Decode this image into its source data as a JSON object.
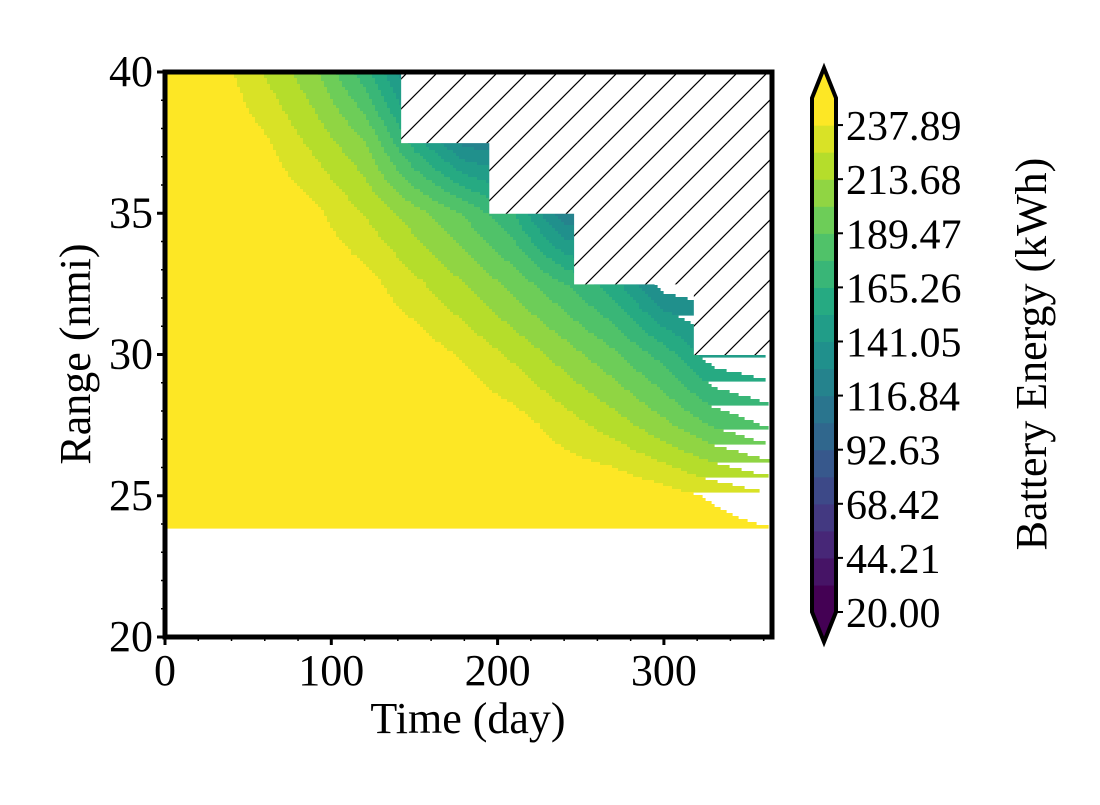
{
  "chart_data": {
    "type": "contour",
    "xlabel": "Time (day)",
    "ylabel": "Range (nmi)",
    "xlim": [
      0,
      365
    ],
    "ylim": [
      20,
      40
    ],
    "x_ticks": [
      0,
      100,
      200,
      300
    ],
    "y_ticks": [
      20,
      25,
      30,
      35,
      40
    ],
    "colorbar": {
      "label": "Battery Energy (kWh)",
      "range": [
        20.0,
        250.0
      ],
      "extend": "both",
      "levels": [
        20.0,
        32.1,
        44.21,
        56.32,
        68.42,
        80.53,
        92.63,
        104.74,
        116.84,
        128.95,
        141.05,
        153.16,
        165.26,
        177.37,
        189.47,
        201.58,
        213.68,
        225.79,
        237.89,
        250.0
      ],
      "tick_labels": [
        "20.00",
        "44.21",
        "68.42",
        "92.63",
        "116.84",
        "141.05",
        "165.26",
        "189.47",
        "213.68",
        "237.89"
      ],
      "colormap": "viridis"
    },
    "hatched_region": {
      "meaning": "infeasible",
      "boundary_steps": [
        {
          "range_from": 37.5,
          "range_to": 40,
          "time_start": 142
        },
        {
          "range_from": 35,
          "range_to": 37.5,
          "time_start": 195
        },
        {
          "range_from": 32.5,
          "range_to": 35,
          "time_start": 246
        },
        {
          "range_from": 30,
          "range_to": 32.5,
          "time_start": 318
        },
        {
          "range_from": 20,
          "range_to": 30,
          "time_start": 366
        }
      ]
    },
    "energy_surface": {
      "description": "Battery energy (kWh) sampled on the time-range grid; saturates at upper limit",
      "time": [
        0,
        30,
        60,
        90,
        120,
        150,
        180,
        210,
        240,
        270,
        300,
        330,
        365
      ],
      "range": [
        20,
        22.5,
        25,
        27.5,
        30,
        32.5,
        35,
        37.5,
        40
      ],
      "rows": [
        [
          250,
          250,
          250,
          250,
          250,
          250,
          250,
          250,
          250,
          250,
          250,
          250,
          250
        ],
        [
          250,
          250,
          250,
          250,
          250,
          250,
          250,
          250,
          250,
          250,
          250,
          250,
          250
        ],
        [
          250,
          250,
          250,
          250,
          250,
          250,
          250,
          250,
          250,
          250,
          244,
          236,
          228
        ],
        [
          250,
          250,
          250,
          250,
          250,
          250,
          250,
          244,
          232,
          220,
          205,
          188,
          175
        ],
        [
          250,
          250,
          250,
          250,
          250,
          246,
          236,
          223,
          208,
          192,
          172,
          145,
          140
        ],
        [
          250,
          250,
          250,
          250,
          243,
          229,
          214,
          197,
          178,
          158,
          122,
          120,
          120
        ],
        [
          250,
          250,
          250,
          241,
          225,
          207,
          188,
          165,
          120,
          118,
          116,
          114,
          112
        ],
        [
          250,
          250,
          240,
          222,
          203,
          160,
          125,
          120,
          118,
          116,
          114,
          112,
          110
        ],
        [
          250,
          246,
          225,
          204,
          170,
          125,
          122,
          120,
          118,
          116,
          114,
          112,
          110
        ]
      ]
    }
  }
}
